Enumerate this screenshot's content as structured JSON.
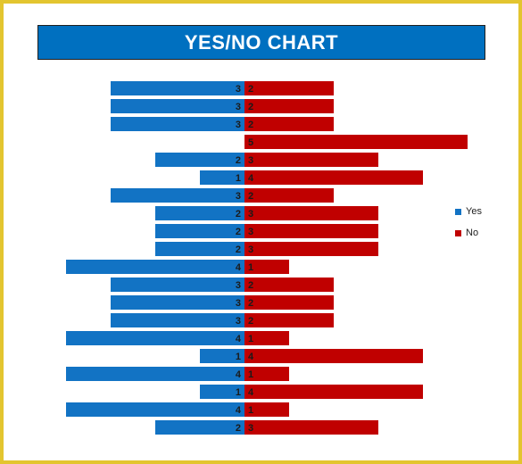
{
  "colors": {
    "yes": "#1273c4",
    "no": "#c00000",
    "title_band": "#0070c0",
    "frame": "#e3c52f"
  },
  "chart_data": {
    "type": "bar",
    "orientation": "horizontal-diverging",
    "title": "YES/NO CHART",
    "grid": false,
    "legend_placement": "right",
    "series": [
      {
        "name": "Yes",
        "values": [
          3,
          3,
          3,
          0,
          2,
          1,
          3,
          2,
          2,
          2,
          4,
          3,
          3,
          3,
          4,
          1,
          4,
          1,
          4,
          2
        ]
      },
      {
        "name": "No",
        "values": [
          2,
          2,
          2,
          5,
          3,
          4,
          2,
          3,
          3,
          3,
          1,
          2,
          2,
          2,
          1,
          4,
          1,
          4,
          1,
          3
        ]
      }
    ]
  }
}
